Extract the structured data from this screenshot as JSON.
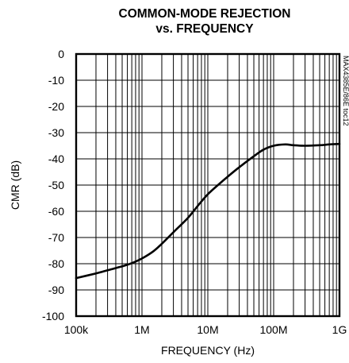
{
  "chart_data": {
    "type": "line",
    "title_line1": "COMMON-MODE REJECTION",
    "title_line2": "vs. FREQUENCY",
    "xlabel": "FREQUENCY (Hz)",
    "ylabel": "CMR (dB)",
    "x_scale": "log",
    "xlim": [
      100000,
      1000000000
    ],
    "ylim": [
      -100,
      0
    ],
    "x_ticks": [
      {
        "value": 100000,
        "label": "100k"
      },
      {
        "value": 1000000,
        "label": "1M"
      },
      {
        "value": 10000000,
        "label": "10M"
      },
      {
        "value": 100000000,
        "label": "100M"
      },
      {
        "value": 1000000000,
        "label": "1G"
      }
    ],
    "y_ticks": [
      0,
      -10,
      -20,
      -30,
      -40,
      -50,
      -60,
      -70,
      -80,
      -90,
      -100
    ],
    "grid": true,
    "watermark": "MAX4385E/86E toc12",
    "line_color": "#000000",
    "series": [
      {
        "x": [
          100000,
          200000,
          300000,
          500000,
          700000,
          1000000,
          1500000,
          2000000,
          3000000,
          5000000,
          7000000,
          10000000,
          15000000,
          20000000,
          30000000,
          50000000,
          70000000,
          100000000,
          150000000,
          200000000,
          300000000,
          500000000,
          700000000,
          1000000000
        ],
        "y": [
          -85.5,
          -83.7,
          -82.5,
          -81,
          -79.8,
          -78,
          -75.2,
          -72.4,
          -68,
          -62.5,
          -58,
          -53.5,
          -49.5,
          -46.8,
          -43.2,
          -39,
          -36.5,
          -35,
          -34.5,
          -34.8,
          -35,
          -34.8,
          -34.5,
          -34.3
        ]
      }
    ]
  }
}
